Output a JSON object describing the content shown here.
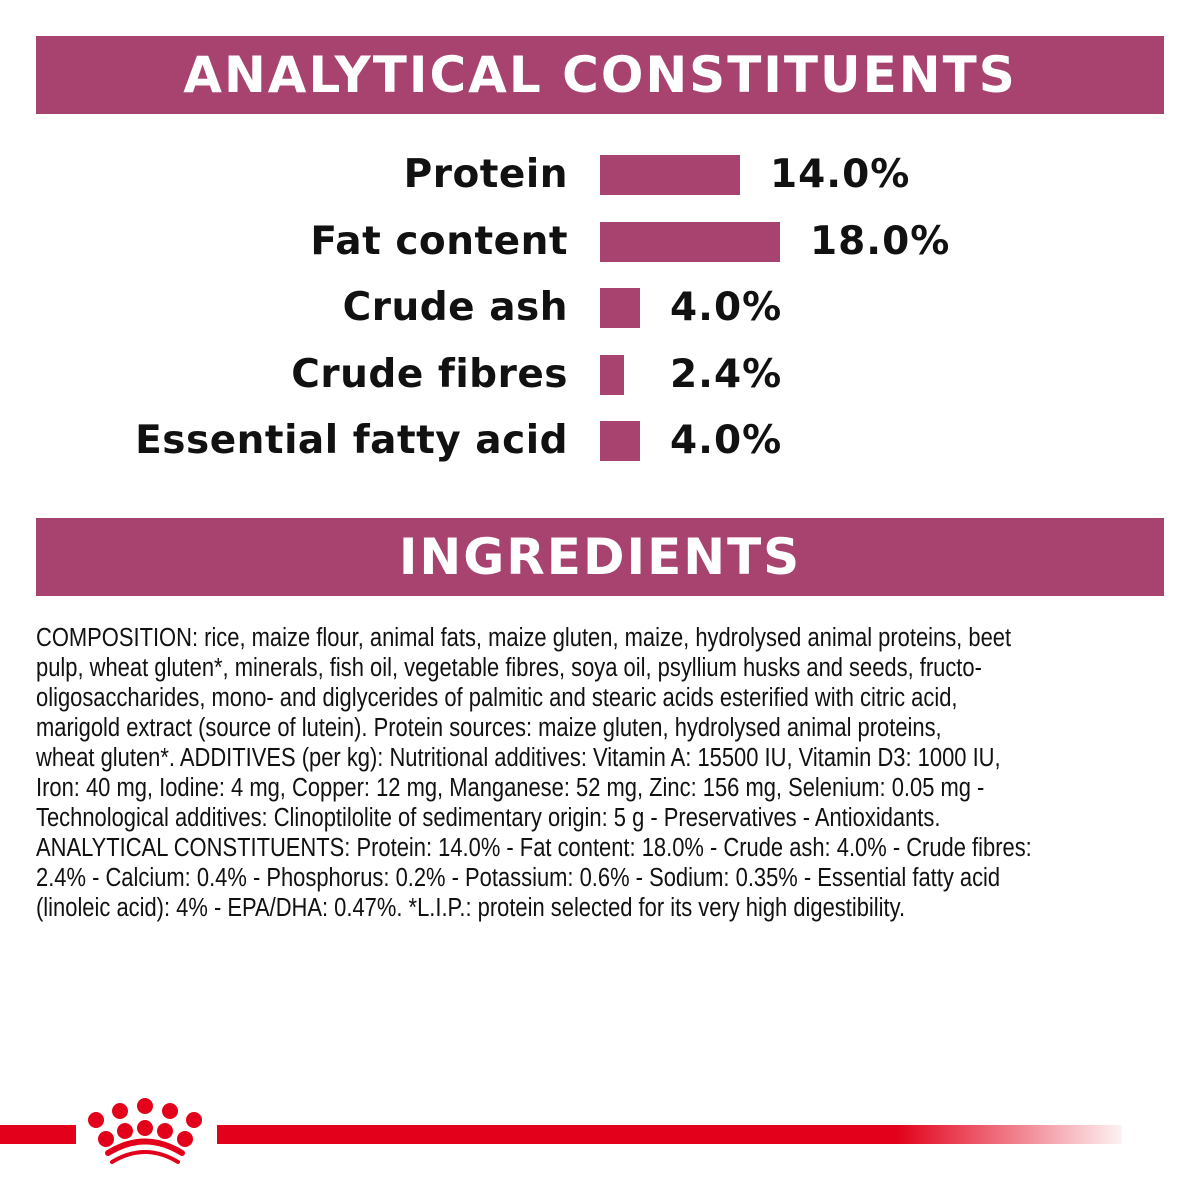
{
  "analytical": {
    "title": "ANALYTICAL CONSTITUENTS"
  },
  "chart_data": {
    "type": "bar",
    "orientation": "horizontal",
    "title": "ANALYTICAL CONSTITUENTS",
    "categories": [
      "Protein",
      "Fat content",
      "Crude ash",
      "Crude fibres",
      "Essential fatty acid"
    ],
    "values": [
      14.0,
      18.0,
      4.0,
      2.4,
      4.0
    ],
    "value_labels": [
      "14.0%",
      "18.0%",
      "4.0%",
      "2.4%",
      "4.0%"
    ],
    "unit": "%",
    "grid": false,
    "bar_color": "#a84370"
  },
  "ingredients": {
    "title": "INGREDIENTS",
    "lines": [
      "COMPOSITION: rice, maize flour, animal fats, maize gluten, maize, hydrolysed animal proteins, beet",
      "pulp, wheat gluten*, minerals, fish oil, vegetable fibres, soya oil, psyllium husks and seeds, fructo-",
      "oligosaccharides, mono- and diglycerides of palmitic and stearic acids esterified with citric acid,",
      "marigold extract (source of lutein). Protein sources: maize gluten, hydrolysed animal proteins,",
      "wheat gluten*. ADDITIVES (per kg): Nutritional additives: Vitamin A: 15500 IU, Vitamin D3: 1000 IU,",
      "Iron: 40 mg, Iodine: 4 mg, Copper: 12 mg, Manganese: 52 mg, Zinc: 156 mg, Selenium: 0.05 mg -",
      "Technological additives: Clinoptilolite of sedimentary origin: 5 g - Preservatives - Antioxidants.",
      "ANALYTICAL CONSTITUENTS: Protein: 14.0% - Fat content: 18.0% - Crude ash: 4.0% - Crude fibres:",
      "2.4% - Calcium: 0.4% - Phosphorus: 0.2% - Potassium: 0.6% - Sodium: 0.35% - Essential fatty acid",
      "(linoleic acid): 4% - EPA/DHA: 0.47%. *L.I.P.: protein selected for its very high digestibility."
    ]
  },
  "colors": {
    "accent": "#a84370",
    "brand_red": "#e2001a"
  },
  "logo": {
    "icon": "crown-logo-icon"
  }
}
